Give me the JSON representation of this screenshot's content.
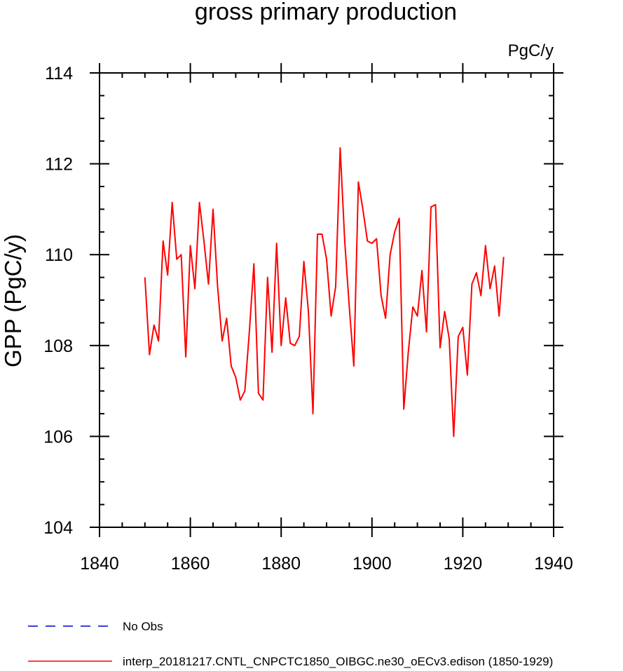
{
  "chart_data": {
    "type": "line",
    "title": "gross primary production",
    "units": "PgC/y",
    "xlabel": "",
    "ylabel": "GPP  (PgC/y)",
    "xlim": [
      1840,
      1940
    ],
    "ylim": [
      104,
      114
    ],
    "xticks": [
      "1840",
      "1860",
      "1880",
      "1900",
      "1920",
      "1940"
    ],
    "yticks": [
      "104",
      "106",
      "108",
      "110",
      "112",
      "114"
    ],
    "grid": false,
    "legend_position": "bottom-left",
    "series": [
      {
        "name": "interp_20181217.CNTL_CNPCTC1850_OIBGC.ne30_oECv3.edison (1850-1929)",
        "color": "#ff0000",
        "style": "solid",
        "x": [
          1850,
          1851,
          1852,
          1853,
          1854,
          1855,
          1856,
          1857,
          1858,
          1859,
          1860,
          1861,
          1862,
          1863,
          1864,
          1865,
          1866,
          1867,
          1868,
          1869,
          1870,
          1871,
          1872,
          1873,
          1874,
          1875,
          1876,
          1877,
          1878,
          1879,
          1880,
          1881,
          1882,
          1883,
          1884,
          1885,
          1886,
          1887,
          1888,
          1889,
          1890,
          1891,
          1892,
          1893,
          1894,
          1895,
          1896,
          1897,
          1898,
          1899,
          1900,
          1901,
          1902,
          1903,
          1904,
          1905,
          1906,
          1907,
          1908,
          1909,
          1910,
          1911,
          1912,
          1913,
          1914,
          1915,
          1916,
          1917,
          1918,
          1919,
          1920,
          1921,
          1922,
          1923,
          1924,
          1925,
          1926,
          1927,
          1928,
          1929
        ],
        "values": [
          109.5,
          107.8,
          108.45,
          108.1,
          110.3,
          109.55,
          111.15,
          109.9,
          110.0,
          107.75,
          110.2,
          109.25,
          111.15,
          110.3,
          109.35,
          111.0,
          109.3,
          108.1,
          108.6,
          107.55,
          107.3,
          106.8,
          107.0,
          108.3,
          109.8,
          106.95,
          106.8,
          109.5,
          107.85,
          110.25,
          108.0,
          109.05,
          108.05,
          108.0,
          108.2,
          109.85,
          108.75,
          106.5,
          110.45,
          110.45,
          109.9,
          108.65,
          109.3,
          112.35,
          110.3,
          108.85,
          107.55,
          111.6,
          111.0,
          110.3,
          110.25,
          110.35,
          109.1,
          108.6,
          110.0,
          110.5,
          110.8,
          106.6,
          107.85,
          108.85,
          108.65,
          109.65,
          108.3,
          111.05,
          111.1,
          107.95,
          108.75,
          108.15,
          106.0,
          108.2,
          108.4,
          107.35,
          109.35,
          109.6,
          109.1,
          110.2,
          109.25,
          109.75,
          108.65,
          109.95
        ]
      },
      {
        "name": "No Obs",
        "color": "#0000cc",
        "style": "dashed",
        "x": [],
        "values": []
      }
    ]
  }
}
